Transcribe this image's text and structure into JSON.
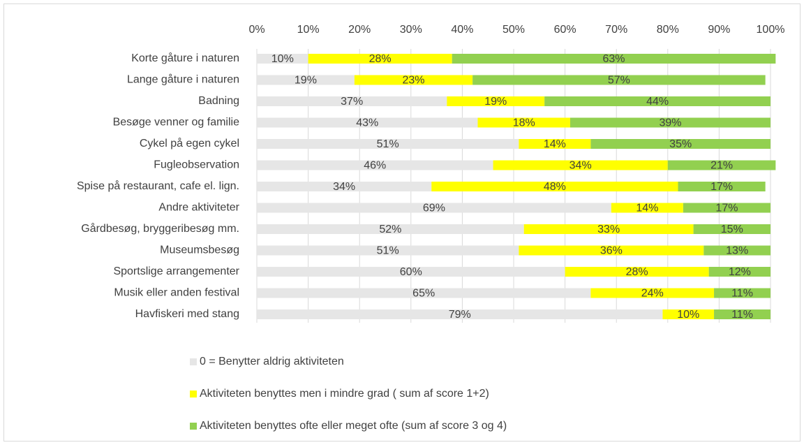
{
  "chart_data": {
    "type": "stacked_barh",
    "categories": [
      "Korte gåture i naturen",
      "Lange gåture i naturen",
      "Badning",
      "Besøge venner og familie",
      "Cykel på egen cykel",
      "Fugleobservation",
      "Spise på restaurant, cafe el. lign.",
      "Andre aktiviteter",
      "Gårdbesøg, bryggeribesøg mm.",
      "Museumsbesøg",
      "Sportslige arrangementer",
      "Musik eller anden festival",
      "Havfiskeri med stang"
    ],
    "series": [
      {
        "name": "0 = Benytter aldrig aktiviteten",
        "color": "#e6e6e6",
        "values": [
          10,
          19,
          37,
          43,
          51,
          46,
          34,
          69,
          52,
          51,
          60,
          65,
          79
        ],
        "value_labels": [
          "10%",
          "19%",
          "37%",
          "43%",
          "51%",
          "46%",
          "34%",
          "69%",
          "52%",
          "51%",
          "60%",
          "65%",
          "79%"
        ]
      },
      {
        "name": "Aktiviteten benyttes men i mindre grad ( sum af score 1+2)",
        "color": "#ffff00",
        "values": [
          28,
          23,
          19,
          18,
          14,
          34,
          48,
          14,
          33,
          36,
          28,
          24,
          10
        ],
        "value_labels": [
          "28%",
          "23%",
          "19%",
          "18%",
          "14%",
          "34%",
          "48%",
          "14%",
          "33%",
          "36%",
          "28%",
          "24%",
          "10%"
        ]
      },
      {
        "name": "Aktiviteten benyttes ofte eller meget ofte (sum af score 3 og 4)",
        "color": "#92d050",
        "values": [
          63,
          57,
          44,
          39,
          35,
          21,
          17,
          17,
          15,
          13,
          12,
          11,
          11
        ],
        "value_labels": [
          "63%",
          "57%",
          "44%",
          "39%",
          "35%",
          "21%",
          "17%",
          "17%",
          "15%",
          "13%",
          "12%",
          "11%",
          "11%"
        ]
      }
    ],
    "xlim": [
      0,
      100
    ],
    "xticks": [
      {
        "value": 0,
        "label": "0%"
      },
      {
        "value": 10,
        "label": "10%"
      },
      {
        "value": 20,
        "label": "20%"
      },
      {
        "value": 30,
        "label": "30%"
      },
      {
        "value": 40,
        "label": "40%"
      },
      {
        "value": 50,
        "label": "50%"
      },
      {
        "value": 60,
        "label": "60%"
      },
      {
        "value": 70,
        "label": "70%"
      },
      {
        "value": 80,
        "label": "80%"
      },
      {
        "value": 90,
        "label": "90%"
      },
      {
        "value": 100,
        "label": "100%"
      }
    ],
    "grid": true,
    "legend": "bottom"
  }
}
